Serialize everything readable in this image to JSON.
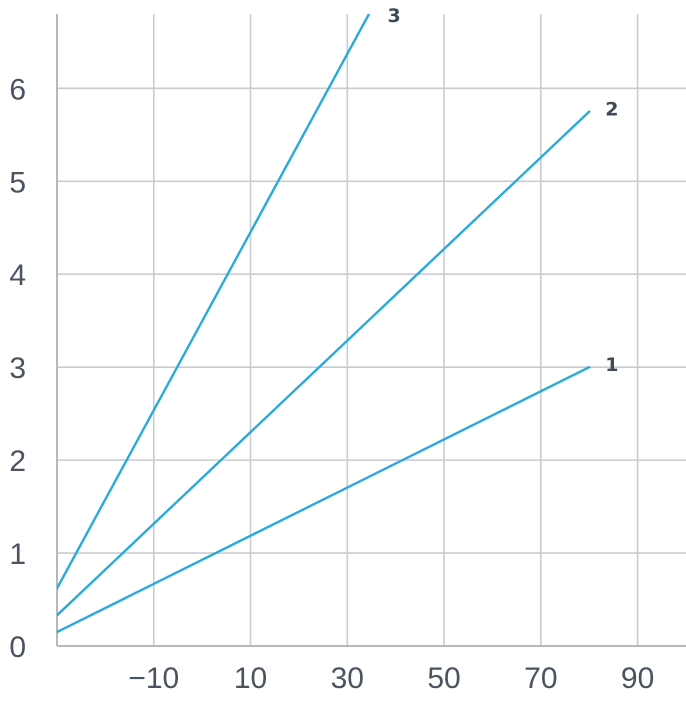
{
  "chart_data": {
    "type": "line",
    "title": "",
    "xlabel": "",
    "ylabel": "",
    "xlim": [
      -30,
      100
    ],
    "ylim": [
      0,
      6.8
    ],
    "grid": true,
    "line_color": "#29aad9",
    "x_ticks": [
      -10,
      10,
      30,
      50,
      70,
      90
    ],
    "x_tick_labels": [
      "−10",
      "10",
      "30",
      "50",
      "70",
      "90"
    ],
    "y_ticks": [
      0,
      1,
      2,
      3,
      4,
      5,
      6
    ],
    "y_tick_labels": [
      "0",
      "1",
      "2",
      "3",
      "4",
      "5",
      "6"
    ],
    "series": [
      {
        "name": "1",
        "x": [
          -30,
          80
        ],
        "y": [
          0.15,
          3.0
        ]
      },
      {
        "name": "2",
        "x": [
          -30,
          80
        ],
        "y": [
          0.33,
          5.75
        ]
      },
      {
        "name": "3",
        "x": [
          -30,
          35
        ],
        "y": [
          0.62,
          6.85
        ]
      }
    ]
  }
}
